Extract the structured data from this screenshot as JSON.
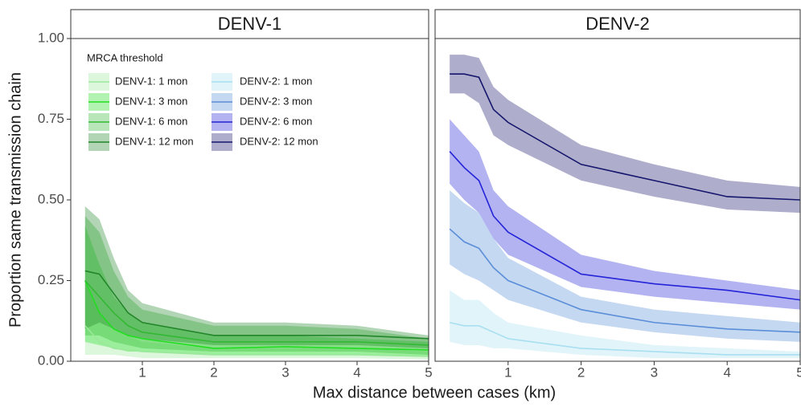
{
  "chart_data": {
    "type": "line",
    "ylabel": "Proportion same transmission chain",
    "xlabel": "Max distance between cases (km)",
    "legend_title": "MRCA threshold",
    "x": [
      0.2,
      0.4,
      0.6,
      0.8,
      1,
      2,
      3,
      4,
      5
    ],
    "xlim": [
      0,
      5
    ],
    "xticks": [
      1,
      2,
      3,
      4,
      5
    ],
    "ylim": [
      0,
      1
    ],
    "yticks": [
      {
        "value": 0,
        "label": "0.00"
      },
      {
        "value": 0.25,
        "label": "0.25"
      },
      {
        "value": 0.5,
        "label": "0.50"
      },
      {
        "value": 0.75,
        "label": "0.75"
      },
      {
        "value": 1,
        "label": "1.00"
      }
    ],
    "facets": [
      {
        "title": "DENV-1",
        "series": [
          {
            "name": "DENV-1: 1 mon",
            "color": "#9be89b",
            "values": [
              0.11,
              0.06,
              0.04,
              0.035,
              0.03,
              0.02,
              0.02,
              0.02,
              0.015
            ],
            "lower": [
              0.02,
              0.02,
              0.02,
              0.015,
              0.01,
              0.01,
              0.01,
              0.01,
              0.005
            ],
            "upper": [
              0.25,
              0.15,
              0.1,
              0.08,
              0.06,
              0.04,
              0.04,
              0.04,
              0.03
            ]
          },
          {
            "name": "DENV-1: 3 mon",
            "color": "#22dd22",
            "values": [
              0.25,
              0.15,
              0.1,
              0.08,
              0.07,
              0.04,
              0.045,
              0.04,
              0.035
            ],
            "lower": [
              0.06,
              0.05,
              0.04,
              0.03,
              0.03,
              0.02,
              0.02,
              0.02,
              0.015
            ],
            "upper": [
              0.42,
              0.3,
              0.2,
              0.15,
              0.12,
              0.08,
              0.08,
              0.07,
              0.06
            ]
          },
          {
            "name": "DENV-1: 6 mon",
            "color": "#33b833",
            "values": [
              0.25,
              0.2,
              0.15,
              0.11,
              0.09,
              0.06,
              0.06,
              0.06,
              0.05
            ],
            "lower": [
              0.08,
              0.08,
              0.06,
              0.05,
              0.04,
              0.03,
              0.03,
              0.03,
              0.02
            ],
            "upper": [
              0.45,
              0.4,
              0.28,
              0.2,
              0.16,
              0.11,
              0.11,
              0.1,
              0.07
            ]
          },
          {
            "name": "DENV-1: 12 mon",
            "color": "#23862a",
            "values": [
              0.28,
              0.27,
              0.21,
              0.15,
              0.12,
              0.08,
              0.08,
              0.08,
              0.07
            ],
            "lower": [
              0.1,
              0.12,
              0.1,
              0.08,
              0.07,
              0.05,
              0.05,
              0.05,
              0.04
            ],
            "upper": [
              0.48,
              0.44,
              0.32,
              0.22,
              0.18,
              0.12,
              0.12,
              0.11,
              0.08
            ]
          }
        ]
      },
      {
        "title": "DENV-2",
        "series": [
          {
            "name": "DENV-2: 1 mon",
            "color": "#a8dff0",
            "values": [
              0.12,
              0.11,
              0.11,
              0.09,
              0.07,
              0.04,
              0.03,
              0.02,
              0.02
            ],
            "lower": [
              0.06,
              0.05,
              0.05,
              0.04,
              0.04,
              0.02,
              0.01,
              0.01,
              0.01
            ],
            "upper": [
              0.22,
              0.19,
              0.19,
              0.15,
              0.12,
              0.08,
              0.05,
              0.04,
              0.03
            ]
          },
          {
            "name": "DENV-2: 3 mon",
            "color": "#5a8ed8",
            "values": [
              0.41,
              0.37,
              0.35,
              0.29,
              0.25,
              0.16,
              0.12,
              0.1,
              0.09
            ],
            "lower": [
              0.3,
              0.27,
              0.25,
              0.22,
              0.19,
              0.12,
              0.09,
              0.07,
              0.06
            ],
            "upper": [
              0.53,
              0.49,
              0.46,
              0.38,
              0.32,
              0.2,
              0.16,
              0.14,
              0.12
            ]
          },
          {
            "name": "DENV-2: 6 mon",
            "color": "#2424d8",
            "values": [
              0.65,
              0.6,
              0.56,
              0.45,
              0.4,
              0.27,
              0.24,
              0.22,
              0.19
            ],
            "lower": [
              0.55,
              0.5,
              0.46,
              0.38,
              0.33,
              0.23,
              0.2,
              0.18,
              0.16
            ],
            "upper": [
              0.75,
              0.7,
              0.65,
              0.53,
              0.48,
              0.33,
              0.28,
              0.25,
              0.22
            ]
          },
          {
            "name": "DENV-2: 12 mon",
            "color": "#16166e",
            "values": [
              0.89,
              0.89,
              0.88,
              0.78,
              0.74,
              0.61,
              0.56,
              0.51,
              0.5
            ],
            "lower": [
              0.83,
              0.83,
              0.8,
              0.7,
              0.67,
              0.56,
              0.51,
              0.47,
              0.46
            ],
            "upper": [
              0.95,
              0.95,
              0.94,
              0.85,
              0.81,
              0.67,
              0.61,
              0.56,
              0.54
            ]
          }
        ]
      }
    ]
  }
}
